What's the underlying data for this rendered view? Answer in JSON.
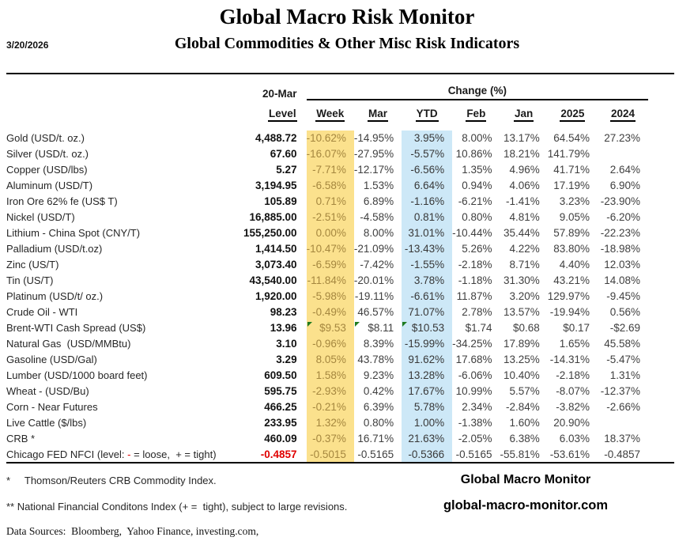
{
  "header": {
    "date": "3/20/2026",
    "title": "Global Macro Risk Monitor",
    "subtitle": "Global Commodities & Other Misc Risk Indicators"
  },
  "table": {
    "level_header_top": "20-Mar",
    "level_header_bottom": "Level",
    "change_header": "Change (%)",
    "change_columns": [
      "Week",
      "Mar",
      "YTD",
      "Feb",
      "Jan",
      "2025",
      "2024"
    ],
    "rows": [
      {
        "label": "Gold (USD/t. oz.)",
        "level": "4,488.72",
        "changes": [
          "-10.62%",
          "-14.95%",
          "3.95%",
          "8.00%",
          "13.17%",
          "64.54%",
          "27.23%"
        ]
      },
      {
        "label": "Silver (USD/t. oz.)",
        "level": "67.60",
        "changes": [
          "-16.07%",
          "-27.95%",
          "-5.57%",
          "10.86%",
          "18.21%",
          "141.79%",
          ""
        ]
      },
      {
        "label": "Copper (USD/lbs)",
        "level": "5.27",
        "changes": [
          "-7.71%",
          "-12.17%",
          "-6.56%",
          "1.35%",
          "4.96%",
          "41.71%",
          "2.64%"
        ]
      },
      {
        "label": "Aluminum (USD/T)",
        "level": "3,194.95",
        "changes": [
          "-6.58%",
          "1.53%",
          "6.64%",
          "0.94%",
          "4.06%",
          "17.19%",
          "6.90%"
        ]
      },
      {
        "label": "Iron Ore 62% fe (US$ T)",
        "level": "105.89",
        "changes": [
          "0.71%",
          "6.89%",
          "-1.16%",
          "-6.21%",
          "-1.41%",
          "3.23%",
          "-23.90%"
        ]
      },
      {
        "label": "Nickel (USD/T)",
        "level": "16,885.00",
        "changes": [
          "-2.51%",
          "-4.58%",
          "0.81%",
          "0.80%",
          "4.81%",
          "9.05%",
          "-6.20%"
        ]
      },
      {
        "label": "Lithium - China Spot (CNY/T)",
        "level": "155,250.00",
        "changes": [
          "0.00%",
          "8.00%",
          "31.01%",
          "-10.44%",
          "35.44%",
          "57.89%",
          "-22.23%"
        ]
      },
      {
        "label": "Palladium (USD/t.oz)",
        "level": "1,414.50",
        "changes": [
          "-10.47%",
          "-21.09%",
          "-13.43%",
          "5.26%",
          "4.22%",
          "83.80%",
          "-18.98%"
        ]
      },
      {
        "label": "Zinc (US/T)",
        "level": "3,073.40",
        "changes": [
          "-6.59%",
          "-7.42%",
          "-1.55%",
          "-2.18%",
          "8.71%",
          "4.40%",
          "12.03%"
        ]
      },
      {
        "label": "Tin (US/T)",
        "level": "43,540.00",
        "changes": [
          "-11.84%",
          "-20.01%",
          "3.78%",
          "-1.18%",
          "31.30%",
          "43.21%",
          "14.08%"
        ]
      },
      {
        "label": "Platinum (USD/t/ oz.)",
        "level": "1,920.00",
        "changes": [
          "-5.98%",
          "-19.11%",
          "-6.61%",
          "11.87%",
          "3.20%",
          "129.97%",
          "-9.45%"
        ]
      },
      {
        "label": "Crude Oil - WTI",
        "level": "98.23",
        "changes": [
          "-0.49%",
          "46.57%",
          "71.07%",
          "2.78%",
          "13.57%",
          "-19.94%",
          "0.56%"
        ]
      },
      {
        "label": "Brent-WTI Cash Spread (US$)",
        "level": "13.96",
        "changes": [
          "$9.53",
          "$8.11",
          "$10.53",
          "$1.74",
          "$0.68",
          "$0.17",
          "-$2.69"
        ],
        "triangles": [
          0,
          1,
          2
        ]
      },
      {
        "label": "Natural Gas  (USD/MMBtu)",
        "level": "3.10",
        "changes": [
          "-0.96%",
          "8.39%",
          "-15.99%",
          "-34.25%",
          "17.89%",
          "1.65%",
          "45.58%"
        ]
      },
      {
        "label": "Gasoline (USD/Gal)",
        "level": "3.29",
        "changes": [
          "8.05%",
          "43.78%",
          "91.62%",
          "17.68%",
          "13.25%",
          "-14.31%",
          "-5.47%"
        ]
      },
      {
        "label": "Lumber (USD/1000 board feet)",
        "level": "609.50",
        "changes": [
          "1.58%",
          "9.23%",
          "13.28%",
          "-6.06%",
          "10.40%",
          "-2.18%",
          "1.31%"
        ]
      },
      {
        "label": "Wheat - (USD/Bu)",
        "level": "595.75",
        "changes": [
          "-2.93%",
          "0.42%",
          "17.67%",
          "10.99%",
          "5.57%",
          "-8.07%",
          "-12.37%"
        ]
      },
      {
        "label": "Corn - Near Futures",
        "level": "466.25",
        "changes": [
          "-0.21%",
          "6.39%",
          "5.78%",
          "2.34%",
          "-2.84%",
          "-3.82%",
          "-2.66%"
        ]
      },
      {
        "label": "Live Cattle ($/lbs)",
        "level": "233.95",
        "changes": [
          "1.32%",
          "0.80%",
          "1.00%",
          "-1.38%",
          "1.60%",
          "20.90%",
          ""
        ]
      },
      {
        "label": "CRB *",
        "level": "460.09",
        "changes": [
          "-0.37%",
          "16.71%",
          "21.63%",
          "-2.05%",
          "6.38%",
          "6.03%",
          "18.37%"
        ]
      },
      {
        "label": "Chicago FED NFCI (level: - = loose,  + = tight)",
        "level": "-0.4857",
        "level_red": true,
        "label_parts": [
          {
            "text": "Chicago FED NFCI (level: ",
            "red": false
          },
          {
            "text": "-",
            "red": true
          },
          {
            "text": " = loose,  + = tight)",
            "red": false
          }
        ],
        "changes": [
          "-0.5015",
          "-0.5165",
          "-0.5366",
          "-0.5165",
          "-55.81%",
          "-53.61%",
          "-0.4857"
        ]
      }
    ]
  },
  "footer": {
    "footnote1": "*     Thomson/Reuters CRB Commodity Index.",
    "footnote2": "** National Financial Conditons Index (+ =  tight), subject to large revisions.",
    "data_sources": "Data Sources:  Bloomberg,  Yahoo Finance, investing.com,",
    "brand_name": "Global Macro Monitor",
    "brand_site": "global-macro-monitor.com"
  },
  "colors": {
    "week_bg": "#FBE18D",
    "week_fg": "#A5873F",
    "ytd_bg": "#CDE8F7",
    "red": "#E00000",
    "green": "#1F7B1F"
  }
}
